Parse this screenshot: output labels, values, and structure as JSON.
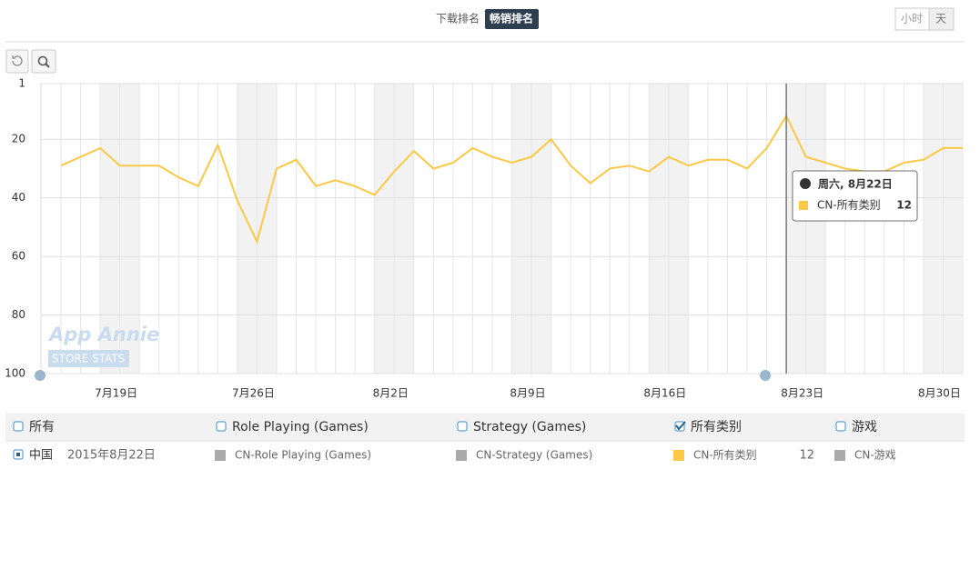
{
  "tabs": [
    "下载排名",
    "畅销排名"
  ],
  "granularity": [
    "小时",
    "天"
  ],
  "chart_data": {
    "type": "line",
    "x": [
      null,
      null,
      null,
      "7月19日",
      null,
      null,
      null,
      null,
      null,
      null,
      "7月26日",
      null,
      null,
      null,
      null,
      null,
      null,
      "8月2日",
      null,
      null,
      null,
      null,
      null,
      null,
      "8月9日",
      null,
      null,
      null,
      null,
      null,
      null,
      "8月16日",
      null,
      null,
      null,
      null,
      null,
      null,
      "8月23日",
      null,
      null,
      null,
      null,
      null,
      null,
      "8月30日",
      null
    ],
    "series": [
      {
        "name": "CN-所有类别",
        "color": "#fcc845",
        "values": [
          29,
          26,
          23,
          29,
          29,
          29,
          33,
          36,
          22,
          41,
          55,
          30,
          27,
          36,
          34,
          36,
          39,
          31,
          24,
          30,
          28,
          23,
          26,
          28,
          26,
          20,
          29,
          35,
          30,
          29,
          31,
          26,
          29,
          27,
          27,
          30,
          23,
          12,
          26,
          28,
          30,
          31,
          31,
          28,
          27,
          23,
          23
        ]
      }
    ],
    "ylim": [
      1,
      100
    ],
    "y_inverted": true,
    "yticks": [
      1,
      20,
      40,
      60,
      80,
      100
    ],
    "grid": true
  },
  "tooltip": {
    "title": "周六, 8月22日"
  },
  "watermark": [
    "App Annie",
    "STORE STATS"
  ],
  "legend": {
    "filters": [
      "所有",
      "Role Playing (Games)",
      "Strategy (Games)",
      "所有类别",
      "游戏"
    ],
    "checked_index": 3,
    "country": "中国",
    "date": "2015年8月22日",
    "series": [
      "CN-Role Playing (Games)",
      "CN-Strategy (Games)",
      "CN-游戏"
    ]
  }
}
